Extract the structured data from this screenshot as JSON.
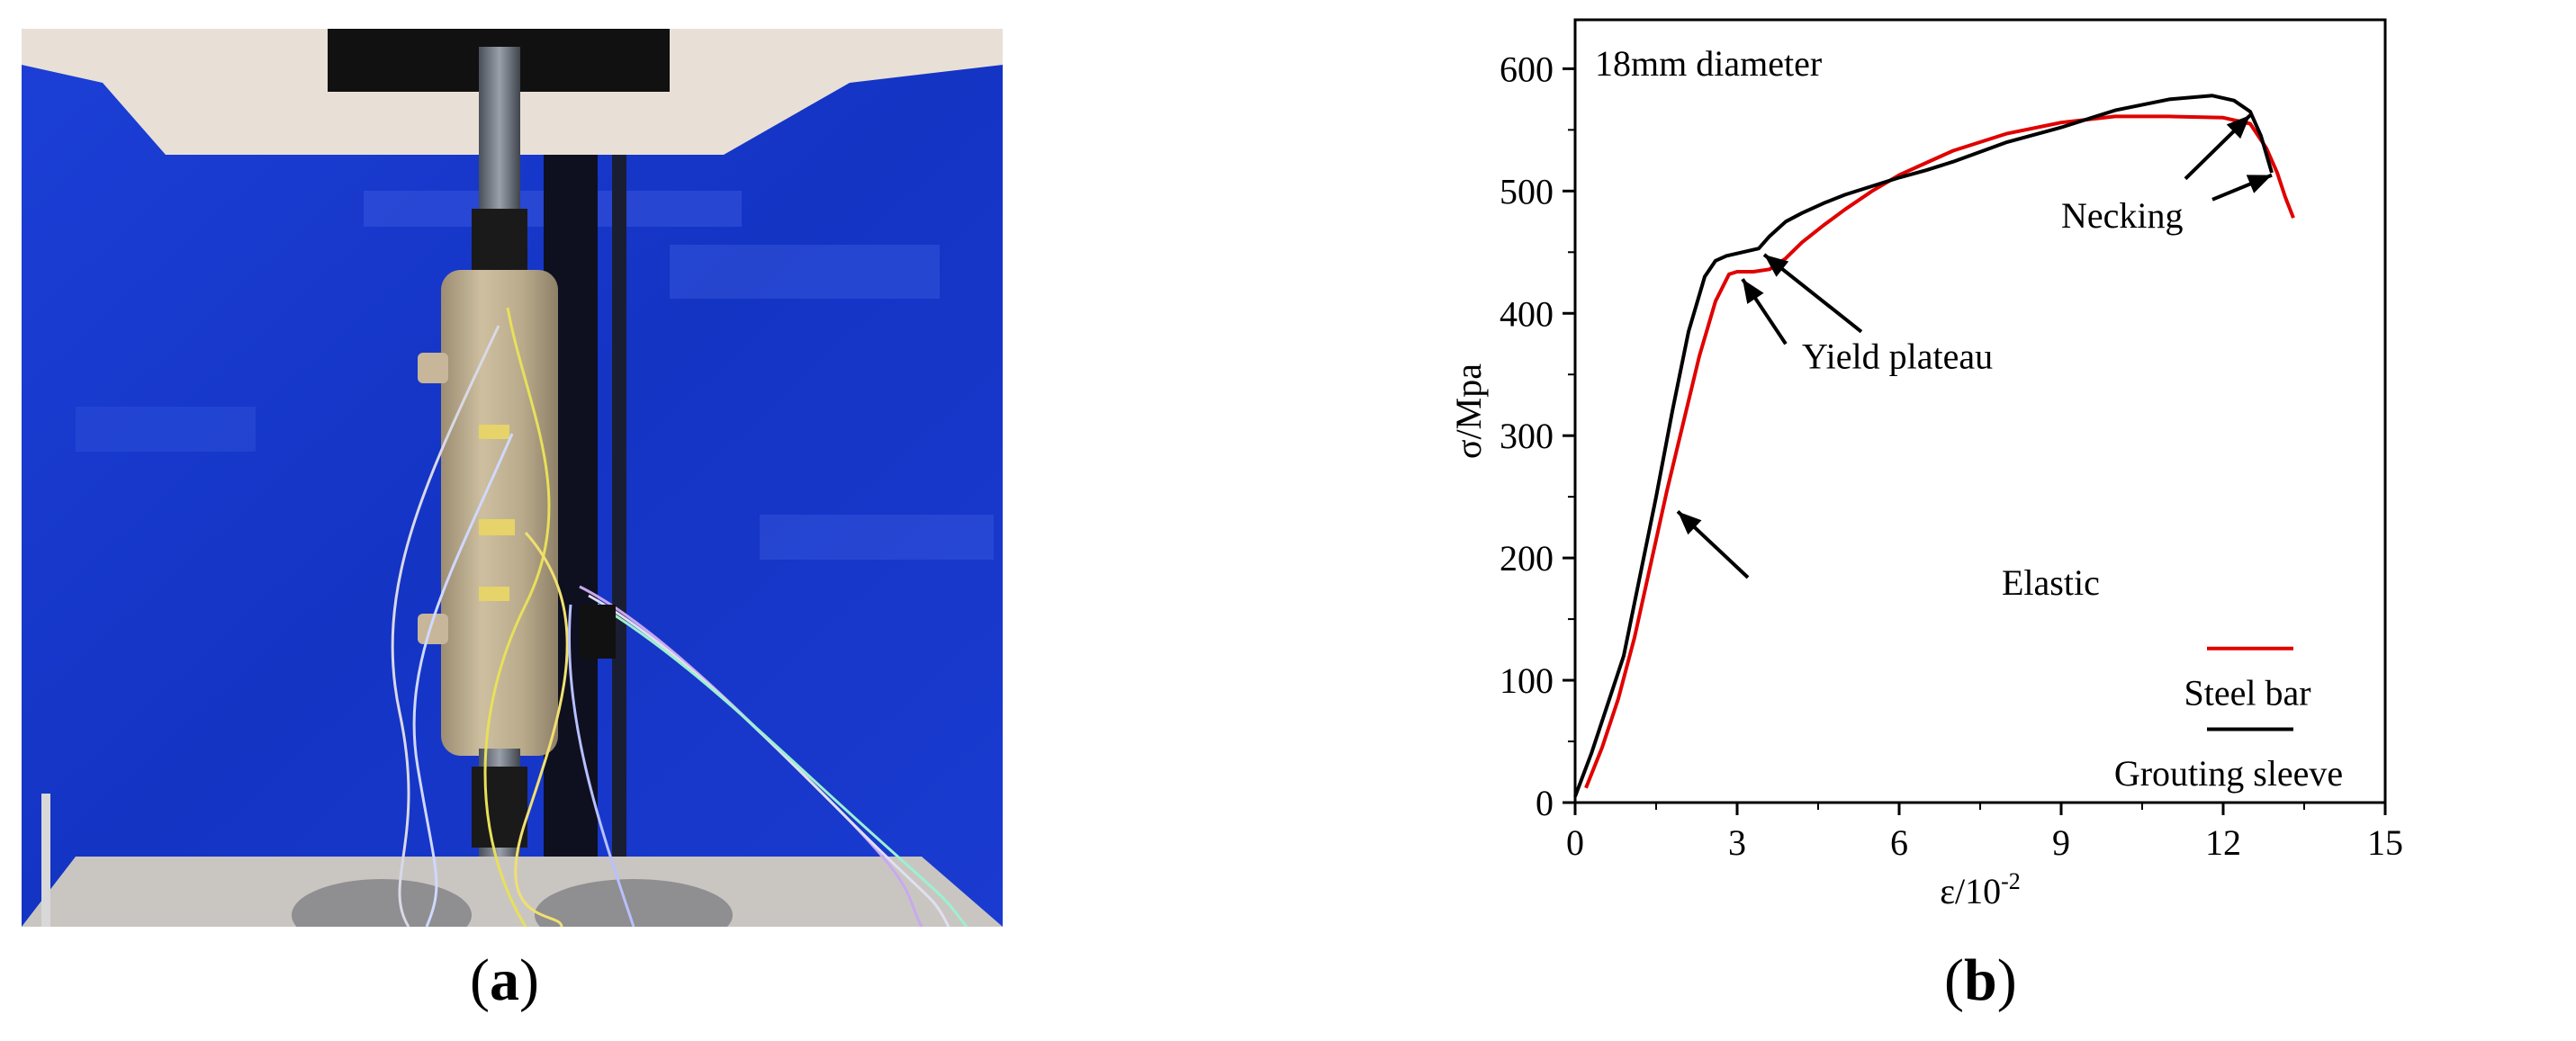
{
  "panels": {
    "a": {
      "label_open": "(",
      "label_letter": "a",
      "label_close": ")"
    },
    "b": {
      "label_open": "(",
      "label_letter": "b",
      "label_close": ")"
    }
  },
  "photo": {
    "description_colors": {
      "background": "#1636c8",
      "specimen": "#c8b99a",
      "frame": "#e8e0d6"
    }
  },
  "chart_data": {
    "type": "line",
    "title": "18mm diameter",
    "xlabel": "ε/10",
    "xlabel_exp": "-2",
    "ylabel": "σ/Mpa",
    "xlim": [
      0,
      15
    ],
    "ylim": [
      0,
      640
    ],
    "xticks": [
      0,
      3,
      6,
      9,
      12,
      15
    ],
    "yticks": [
      0,
      100,
      200,
      300,
      400,
      500,
      600
    ],
    "grid": false,
    "legend_position": "bottom-right",
    "series": [
      {
        "name": "Steel bar",
        "color": "#e00000",
        "x": [
          0.2,
          0.5,
          0.8,
          1.1,
          1.4,
          1.7,
          2.0,
          2.3,
          2.6,
          2.85,
          3.0,
          3.3,
          3.6,
          3.9,
          4.2,
          4.6,
          5.0,
          5.5,
          6.0,
          6.5,
          7.0,
          8.0,
          9.0,
          10.0,
          11.0,
          12.0,
          12.5,
          12.8,
          13.0,
          13.15,
          13.3
        ],
        "y": [
          12,
          45,
          85,
          135,
          195,
          255,
          310,
          365,
          410,
          432,
          434,
          434,
          436,
          445,
          458,
          472,
          485,
          500,
          513,
          523,
          533,
          547,
          556,
          561,
          561,
          560,
          555,
          535,
          515,
          495,
          478
        ]
      },
      {
        "name": "Grouting sleeve",
        "color": "#000000",
        "x": [
          0.0,
          0.3,
          0.6,
          0.9,
          1.2,
          1.5,
          1.8,
          2.1,
          2.4,
          2.6,
          2.8,
          3.1,
          3.4,
          3.6,
          3.9,
          4.2,
          4.6,
          5.0,
          5.5,
          6.0,
          6.5,
          7.0,
          8.0,
          9.0,
          10.0,
          11.0,
          11.8,
          12.2,
          12.5,
          12.7,
          12.9
        ],
        "y": [
          5,
          40,
          80,
          120,
          185,
          250,
          320,
          385,
          430,
          443,
          447,
          450,
          453,
          463,
          475,
          482,
          490,
          497,
          504,
          511,
          517,
          524,
          540,
          552,
          566,
          575,
          578,
          574,
          565,
          545,
          515
        ]
      }
    ],
    "annotations": [
      "Elastic",
      "Yield plateau",
      "Necking"
    ]
  }
}
